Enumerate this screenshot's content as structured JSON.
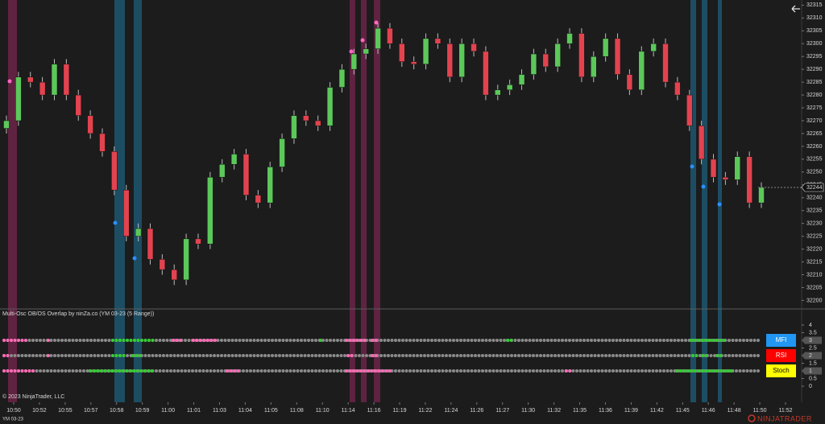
{
  "chart_data": {
    "type": "candlestick",
    "instrument": "YM 03-23",
    "candles": {
      "open": [
        32267,
        32270,
        32287,
        32285,
        32280,
        32292,
        32280,
        32272,
        32265,
        32258,
        32243,
        32225,
        32228,
        32216,
        32212,
        32208,
        32224,
        32222,
        32248,
        32253,
        32257,
        32241,
        32238,
        32252,
        32263,
        32272,
        32270,
        32268,
        32283,
        32290,
        32296,
        32298,
        32306,
        32300,
        32293,
        32292,
        32302,
        32300,
        32287,
        32300,
        32297,
        32280,
        32282,
        32284,
        32288,
        32296,
        32291,
        32300,
        32304,
        32287,
        32295,
        32302,
        32288,
        32282,
        32297,
        32300,
        32285,
        32280,
        32268,
        32255,
        32248,
        32247,
        32256,
        32238
      ],
      "high": [
        32272,
        32289,
        32289,
        32287,
        32294,
        32294,
        32282,
        32274,
        32267,
        32260,
        32245,
        32230,
        32230,
        32218,
        32214,
        32226,
        32226,
        32250,
        32255,
        32259,
        32259,
        32243,
        32254,
        32265,
        32274,
        32274,
        32272,
        32285,
        32292,
        32298,
        32300,
        32308,
        32308,
        32302,
        32295,
        32304,
        32304,
        32302,
        32302,
        32302,
        32299,
        32284,
        32286,
        32290,
        32298,
        32298,
        32302,
        32306,
        32306,
        32297,
        32304,
        32304,
        32290,
        32299,
        32302,
        32302,
        32287,
        32282,
        32270,
        32257,
        32250,
        32258,
        32258,
        32246
      ],
      "low": [
        32265,
        32268,
        32283,
        32278,
        32278,
        32278,
        32270,
        32263,
        32256,
        32241,
        32223,
        32223,
        32214,
        32210,
        32206,
        32206,
        32220,
        32220,
        32246,
        32251,
        32239,
        32236,
        32236,
        32250,
        32261,
        32268,
        32266,
        32266,
        32281,
        32288,
        32294,
        32296,
        32298,
        32291,
        32290,
        32290,
        32298,
        32285,
        32285,
        32295,
        32278,
        32278,
        32280,
        32282,
        32286,
        32289,
        32289,
        32298,
        32285,
        32285,
        32293,
        32286,
        32280,
        32280,
        32295,
        32283,
        32278,
        32266,
        32253,
        32246,
        32245,
        32245,
        32236,
        32236
      ],
      "close": [
        32270,
        32287,
        32285,
        32280,
        32292,
        32280,
        32272,
        32265,
        32258,
        32243,
        32225,
        32228,
        32216,
        32212,
        32208,
        32224,
        32222,
        32248,
        32253,
        32257,
        32241,
        32238,
        32252,
        32263,
        32272,
        32270,
        32268,
        32283,
        32290,
        32296,
        32298,
        32306,
        32300,
        32293,
        32292,
        32302,
        32300,
        32287,
        32300,
        32297,
        32280,
        32282,
        32284,
        32288,
        32296,
        32291,
        32300,
        32304,
        32287,
        32295,
        32302,
        32288,
        32282,
        32297,
        32300,
        32285,
        32280,
        32268,
        32255,
        32248,
        32247,
        32256,
        32238,
        32244
      ]
    },
    "up_color": "#5cc85a",
    "down_color": "#e2434f",
    "ylim": [
      32197,
      32317
    ],
    "yticks": [
      32315,
      32310,
      32305,
      32300,
      32295,
      32290,
      32285,
      32280,
      32275,
      32270,
      32265,
      32260,
      32255,
      32250,
      32245,
      32240,
      32235,
      32230,
      32225,
      32220,
      32215,
      32210,
      32205,
      32200
    ],
    "xticks": [
      "10:50",
      "10:52",
      "10:55",
      "10:57",
      "10:58",
      "10:59",
      "11:00",
      "11:01",
      "11:03",
      "11:04",
      "11:05",
      "11:08",
      "11:10",
      "11:14",
      "11:16",
      "11:19",
      "11:22",
      "11:24",
      "11:26",
      "11:27",
      "11:30",
      "11:32",
      "11:35",
      "11:36",
      "11:39",
      "11:42",
      "11:45",
      "11:46",
      "11:48",
      "11:50",
      "11:52"
    ]
  },
  "indicator": {
    "title": "Multi-Osc OB/OS Overlap by ninZa.co (YM 03-23 (5 Range))",
    "ylim": [
      -1,
      5
    ],
    "yticks": [
      4,
      3.5,
      3,
      2.5,
      2,
      1.5,
      1,
      0.5,
      0
    ],
    "rows": [
      {
        "name": "MFI",
        "level": 3,
        "color": "#2196f3",
        "text_color": "#ffffff"
      },
      {
        "name": "RSI",
        "level": 2,
        "color": "#ff0000",
        "text_color": "#ffffff"
      },
      {
        "name": "Stoch",
        "level": 1,
        "color": "#ffff00",
        "text_color": "#000000"
      }
    ]
  },
  "copyright": "© 2023 NinjaTrader, LLC",
  "logo": "NINJATRADER"
}
